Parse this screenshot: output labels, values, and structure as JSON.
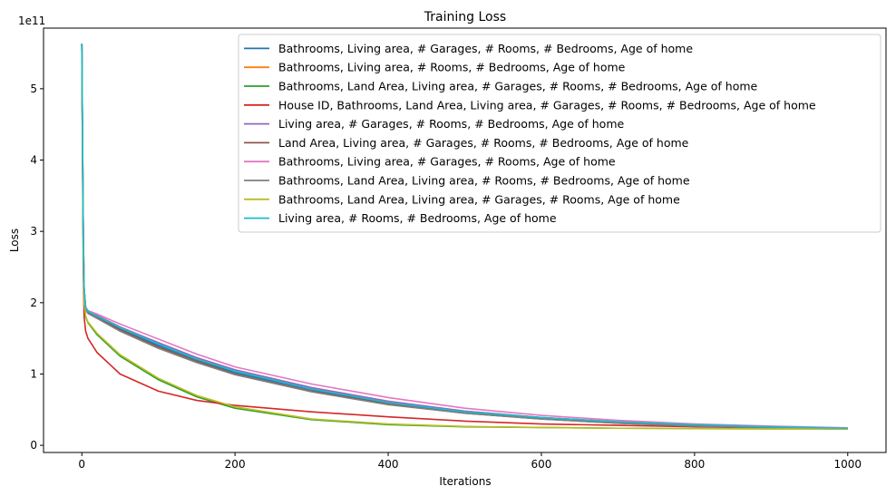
{
  "chart_data": {
    "type": "line",
    "title": "Training Loss",
    "xlabel": "Iterations",
    "ylabel": "Loss",
    "y_scale_label": "1e11",
    "xlim": [
      -50,
      1050
    ],
    "ylim": [
      -0.1,
      5.85
    ],
    "x_ticks": [
      0,
      200,
      400,
      600,
      800,
      1000
    ],
    "x_tick_labels": [
      "0",
      "200",
      "400",
      "600",
      "800",
      "1000"
    ],
    "y_ticks": [
      0,
      1,
      2,
      3,
      4,
      5
    ],
    "y_tick_labels": [
      "0",
      "1",
      "2",
      "3",
      "4",
      "5"
    ],
    "grid": false,
    "legend_position": "upper-right",
    "x": [
      0,
      1,
      2,
      3,
      5,
      8,
      20,
      50,
      100,
      150,
      200,
      300,
      400,
      500,
      600,
      700,
      800,
      900,
      1000
    ],
    "series": [
      {
        "name": "Bathrooms, Living area, # Garages, # Rooms, # Bedrooms, Age of home",
        "color": "#1f77b4",
        "values": [
          5.63,
          4.2,
          2.9,
          2.2,
          1.92,
          1.87,
          1.8,
          1.64,
          1.4,
          1.2,
          1.02,
          0.78,
          0.59,
          0.46,
          0.38,
          0.32,
          0.28,
          0.25,
          0.23
        ]
      },
      {
        "name": "Bathrooms, Living area, # Rooms, # Bedrooms, Age of home",
        "color": "#ff7f0e",
        "values": [
          5.63,
          4.2,
          2.9,
          2.2,
          1.93,
          1.88,
          1.82,
          1.66,
          1.43,
          1.22,
          1.05,
          0.8,
          0.61,
          0.48,
          0.39,
          0.33,
          0.29,
          0.26,
          0.24
        ]
      },
      {
        "name": "Bathrooms, Land Area, Living area, # Garages, # Rooms, # Bedrooms, Age of home",
        "color": "#2ca02c",
        "values": [
          5.63,
          4.0,
          2.7,
          2.0,
          1.8,
          1.72,
          1.55,
          1.25,
          0.92,
          0.68,
          0.52,
          0.36,
          0.29,
          0.26,
          0.25,
          0.24,
          0.235,
          0.232,
          0.23
        ]
      },
      {
        "name": "House ID, Bathrooms, Land Area, Living area, # Garages, # Rooms, # Bedrooms, Age of home",
        "color": "#d62728",
        "values": [
          5.63,
          3.8,
          2.4,
          1.8,
          1.6,
          1.5,
          1.3,
          1.0,
          0.76,
          0.63,
          0.56,
          0.47,
          0.4,
          0.34,
          0.3,
          0.28,
          0.26,
          0.245,
          0.235
        ]
      },
      {
        "name": "Living area, # Garages, # Rooms, # Bedrooms, Age of home",
        "color": "#9467bd",
        "values": [
          5.63,
          4.2,
          2.9,
          2.2,
          1.93,
          1.88,
          1.82,
          1.66,
          1.44,
          1.23,
          1.06,
          0.81,
          0.62,
          0.48,
          0.39,
          0.33,
          0.29,
          0.26,
          0.24
        ]
      },
      {
        "name": "Land Area, Living area, # Garages, # Rooms, # Bedrooms, Age of home",
        "color": "#8c564b",
        "values": [
          5.63,
          4.1,
          2.8,
          2.1,
          1.91,
          1.86,
          1.79,
          1.62,
          1.38,
          1.18,
          1.0,
          0.76,
          0.58,
          0.45,
          0.37,
          0.31,
          0.27,
          0.245,
          0.228
        ]
      },
      {
        "name": "Bathrooms, Living area, # Garages, # Rooms, Age of home",
        "color": "#e377c2",
        "values": [
          5.63,
          4.2,
          2.9,
          2.2,
          1.94,
          1.89,
          1.84,
          1.7,
          1.49,
          1.28,
          1.1,
          0.86,
          0.67,
          0.52,
          0.42,
          0.35,
          0.3,
          0.27,
          0.245
        ]
      },
      {
        "name": "Bathrooms, Land Area, Living area, # Rooms, # Bedrooms, Age of home",
        "color": "#7f7f7f",
        "values": [
          5.63,
          4.1,
          2.8,
          2.1,
          1.9,
          1.85,
          1.78,
          1.6,
          1.36,
          1.16,
          0.99,
          0.75,
          0.57,
          0.45,
          0.37,
          0.31,
          0.27,
          0.245,
          0.228
        ]
      },
      {
        "name": "Bathrooms, Land Area, Living area, # Garages, # Rooms, Age of home",
        "color": "#bcbd22",
        "values": [
          5.63,
          4.0,
          2.7,
          2.0,
          1.81,
          1.73,
          1.57,
          1.27,
          0.94,
          0.7,
          0.54,
          0.37,
          0.3,
          0.265,
          0.25,
          0.24,
          0.235,
          0.232,
          0.23
        ]
      },
      {
        "name": "Living area, # Rooms, # Bedrooms, Age of home",
        "color": "#17becf",
        "values": [
          5.63,
          4.2,
          2.9,
          2.2,
          1.93,
          1.88,
          1.81,
          1.65,
          1.42,
          1.21,
          1.04,
          0.79,
          0.6,
          0.47,
          0.39,
          0.33,
          0.29,
          0.26,
          0.24
        ]
      }
    ]
  }
}
